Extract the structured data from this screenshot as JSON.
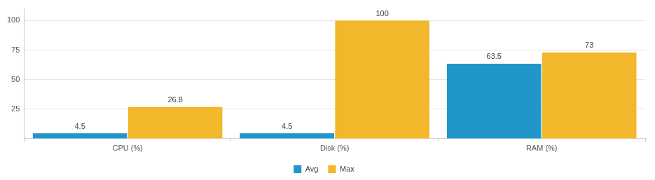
{
  "chart_data": {
    "type": "bar",
    "categories": [
      "CPU (%)",
      "Disk (%)",
      "RAM (%)"
    ],
    "series": [
      {
        "name": "Avg",
        "color": "#2196c9",
        "values": [
          4.5,
          4.5,
          63.5
        ]
      },
      {
        "name": "Max",
        "color": "#f2b72a",
        "values": [
          26.8,
          100,
          73
        ]
      }
    ],
    "ylim": [
      0,
      110
    ],
    "yticks": [
      25,
      50,
      75,
      100
    ],
    "grid": true,
    "legend": "bottom",
    "data_labels": true
  }
}
